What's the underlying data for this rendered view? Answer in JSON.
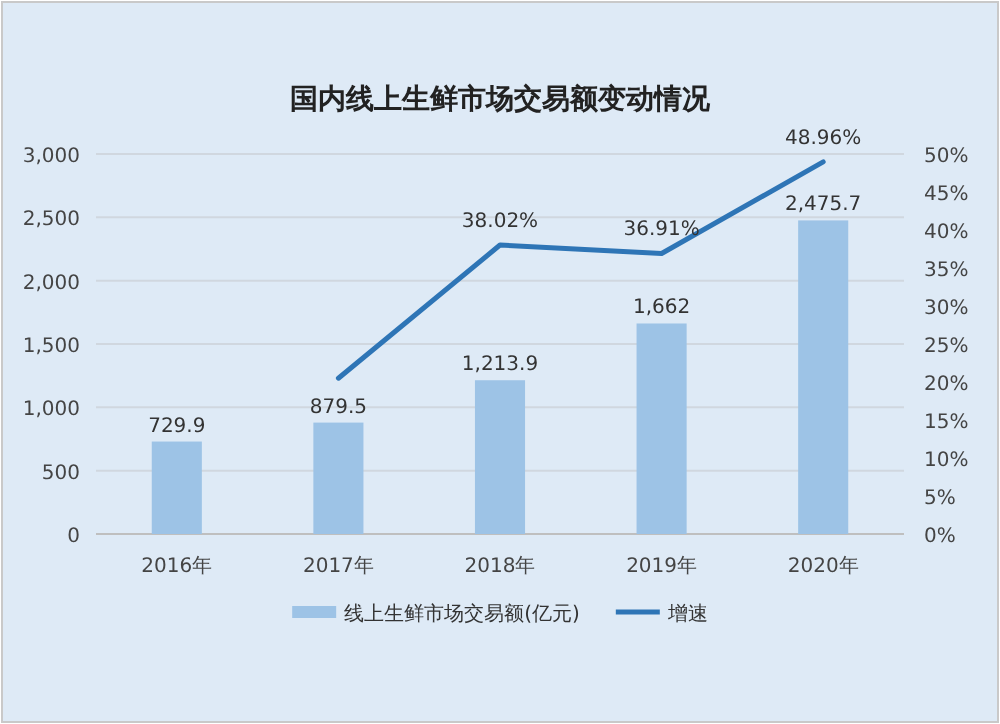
{
  "chart_data": {
    "type": "bar",
    "title": "国内线上生鲜市场交易额变动情况",
    "categories": [
      "2016年",
      "2017年",
      "2018年",
      "2019年",
      "2020年"
    ],
    "series": [
      {
        "name": "线上生鲜市场交易额(亿元)",
        "color": "#9dc3e6",
        "values": [
          729.9,
          879.5,
          1213.9,
          1662,
          2475.7
        ],
        "value_labels": [
          "729.9",
          "879.5",
          "1,213.9",
          "1,662",
          "2,475.7"
        ]
      },
      {
        "name": "增速",
        "type": "line",
        "axis": "y2",
        "color": "#2e75b6",
        "values": [
          null,
          20.5,
          38.02,
          36.91,
          48.96
        ],
        "value_labels": [
          null,
          null,
          "38.02%",
          "36.91%",
          "48.96%"
        ]
      }
    ],
    "ylim": [
      0,
      3000
    ],
    "yticks": [
      0,
      {
        "value": 500,
        "label": "500"
      },
      {
        "value": 1000,
        "label": "1,000"
      },
      {
        "value": 1500,
        "label": "1,500"
      },
      {
        "value": 2000,
        "label": "2,000"
      },
      {
        "value": 2500,
        "label": "2,500"
      },
      {
        "value": 3000,
        "label": "3,000"
      }
    ],
    "y2lim": [
      0,
      50
    ],
    "y2ticks": [
      {
        "value": 0,
        "label": "0%"
      },
      {
        "value": 5,
        "label": "5%"
      },
      {
        "value": 10,
        "label": "10%"
      },
      {
        "value": 15,
        "label": "15%"
      },
      {
        "value": 20,
        "label": "20%"
      },
      {
        "value": 25,
        "label": "25%"
      },
      {
        "value": 30,
        "label": "30%"
      },
      {
        "value": 35,
        "label": "35%"
      },
      {
        "value": 40,
        "label": "40%"
      },
      {
        "value": 45,
        "label": "45%"
      },
      {
        "value": 50,
        "label": "50%"
      }
    ],
    "grid": "y",
    "legend": "bottom",
    "marker": "none",
    "line_style": "solid"
  }
}
